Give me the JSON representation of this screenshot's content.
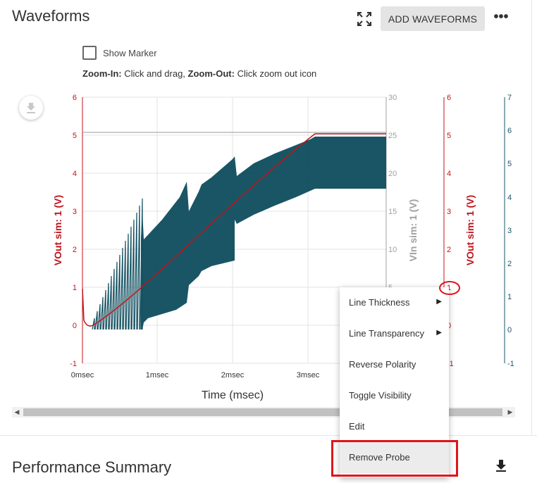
{
  "header": {
    "title": "Waveforms",
    "add_label": "ADD WAVEFORMS",
    "more_label": "•••"
  },
  "marker": {
    "label": "Show Marker",
    "checked": false
  },
  "zoom_hint": {
    "zoom_in_label": "Zoom-In:",
    "zoom_in_text": " Click and drag, ",
    "zoom_out_label": "Zoom-Out:",
    "zoom_out_text": " Click zoom out icon"
  },
  "chart": {
    "xlabel": "Time (msec)",
    "xticks": [
      "0msec",
      "1msec",
      "2msec",
      "3msec"
    ],
    "left_axis": {
      "label": "VOut sim: 1 (V)",
      "ticks": [
        "6",
        "5",
        "4",
        "3",
        "2",
        "1",
        "0",
        "-1"
      ],
      "color": "#c0141a"
    },
    "right_axis_1": {
      "label": "VIn sim: 1 (V)",
      "ticks": [
        "30",
        "25",
        "20",
        "15",
        "10",
        "5"
      ],
      "color": "#a0a0a0"
    },
    "right_axis_2": {
      "label": "VOut sim: 1 (V)",
      "ticks": [
        "6",
        "5",
        "4",
        "3",
        "2",
        "1",
        "0",
        "-1"
      ],
      "color": "#c0141a"
    },
    "right_axis_3": {
      "ticks": [
        "7",
        "6",
        "5",
        "4",
        "3",
        "2",
        "1",
        "0",
        "-1"
      ],
      "color": "#1b5468"
    },
    "probe_marker": "1",
    "waveform_color": "#124f60"
  },
  "menu": {
    "items": [
      {
        "label": "Line Thickness",
        "submenu": true
      },
      {
        "label": "Line Transparency",
        "submenu": true
      },
      {
        "label": "Reverse Polarity",
        "submenu": false
      },
      {
        "label": "Toggle Visibility",
        "submenu": false
      },
      {
        "label": "Edit",
        "submenu": false
      },
      {
        "label": "Remove Probe",
        "submenu": false
      }
    ]
  },
  "performance": {
    "title": "Performance Summary"
  },
  "icons": {
    "expand": "expand-icon",
    "download": "download-icon",
    "more": "more-vert-icon"
  },
  "colors": {
    "accent_red": "#e0141a",
    "button_bg": "#e4e4e4"
  }
}
